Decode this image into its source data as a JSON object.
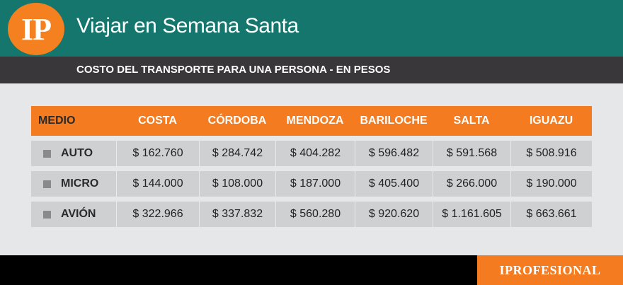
{
  "header": {
    "logo_text": "IP",
    "title": "Viajar en Semana Santa",
    "subtitle": "COSTO DEL TRANSPORTE PARA UNA PERSONA - EN PESOS"
  },
  "table": {
    "columns": [
      "MEDIO",
      "COSTA",
      "CÓRDOBA",
      "MENDOZA",
      "BARILOCHE",
      "SALTA",
      "IGUAZU"
    ],
    "rows": [
      {
        "medio": "AUTO",
        "values": [
          "$ 162.760",
          "$ 284.742",
          "$ 404.282",
          "$ 596.482",
          "$ 591.568",
          "$ 508.916"
        ]
      },
      {
        "medio": "MICRO",
        "values": [
          "$ 144.000",
          "$ 108.000",
          "$ 187.000",
          "$ 405.400",
          "$ 266.000",
          "$ 190.000"
        ]
      },
      {
        "medio": "AVIÓN",
        "values": [
          "$ 322.966",
          "$ 337.832",
          "$ 560.280",
          "$ 920.620",
          "$ 1.161.605",
          "$ 663.661"
        ]
      }
    ]
  },
  "footer": {
    "brand": "IPROFESIONAL"
  },
  "colors": {
    "teal": "#14766c",
    "orange": "#f47b20",
    "dark": "#39373a"
  }
}
